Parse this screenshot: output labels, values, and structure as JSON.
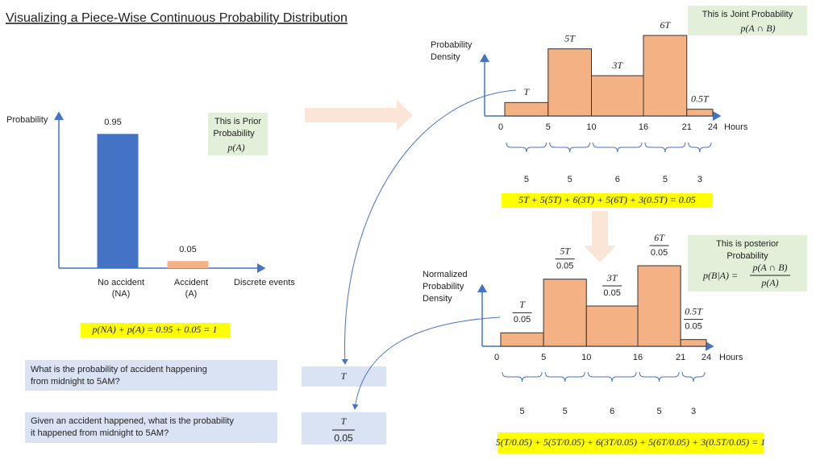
{
  "title": "Visualizing a Piece-Wise Continuous Probability Distribution",
  "chart_data": [
    {
      "type": "bar",
      "y_label": "Probability",
      "x_label": "Discrete events",
      "categories": [
        "No accident",
        "Accident"
      ],
      "category_codes": [
        "(NA)",
        "(A)"
      ],
      "values": [
        0.95,
        0.05
      ],
      "colors": [
        "#4472c4",
        "#f4b183"
      ],
      "ylim": [
        0,
        1.1
      ]
    },
    {
      "type": "histogram",
      "y_label": [
        "Probability",
        "Density"
      ],
      "x_label": "Hours",
      "bins": [
        0,
        5,
        10,
        16,
        21,
        24
      ],
      "values": [
        1,
        5,
        3,
        6,
        0.5
      ],
      "value_labels": [
        "T",
        "5T",
        "3T",
        "6T",
        "0.5T"
      ],
      "widths": [
        5,
        5,
        6,
        5,
        3
      ],
      "color": "#f4b183",
      "xlim": [
        0,
        24
      ],
      "xticks": [
        0,
        5,
        10,
        16,
        21,
        24
      ],
      "ylim": [
        0,
        7
      ]
    },
    {
      "type": "histogram",
      "y_label": [
        "Normalized",
        "Probability",
        "Density"
      ],
      "x_label": "Hours",
      "bins": [
        0,
        5,
        10,
        16,
        21,
        24
      ],
      "values": [
        1,
        5,
        3,
        6,
        0.5
      ],
      "value_labels": [
        "T",
        "5T",
        "3T",
        "6T",
        "0.5T"
      ],
      "label_denominator": "0.05",
      "widths": [
        5,
        5,
        6,
        5,
        3
      ],
      "color": "#f4b183",
      "xlim": [
        0,
        24
      ],
      "xticks": [
        0,
        5,
        10,
        16,
        21,
        24
      ],
      "ylim": [
        0,
        7
      ]
    }
  ],
  "prior_note": {
    "text": [
      "This is Prior",
      "Probability"
    ],
    "formula": "p(A)"
  },
  "joint_note": {
    "text": "This is Joint Probability",
    "formula": "p(A ∩ B)"
  },
  "posterior_note": {
    "text": [
      "This is posterior",
      "Probability"
    ],
    "formula_lhs": "p(B|A) =",
    "numerator": "p(A ∩ B)",
    "denominator": "p(A)"
  },
  "prior_equation": "p(NA) + p(A) = 0.95 + 0.05 = 1",
  "joint_equation": "5T + 5(5T) + 6(3T) + 5(6T) + 3(0.5T) = 0.05",
  "posterior_equation": "5(T/0.05) + 5(5T/0.05) + 6(3T/0.05) + 5(6T/0.05) + 3(0.5T/0.05) = 1",
  "questions": [
    {
      "text": [
        "What is the probability of  accident happening",
        "from midnight to 5AM?"
      ],
      "answer": "T"
    },
    {
      "text": [
        "Given an accident happened,  what is the probability",
        "it happened from midnight to 5AM?"
      ],
      "answer_numerator": "T",
      "answer_denominator": "0.05"
    }
  ]
}
